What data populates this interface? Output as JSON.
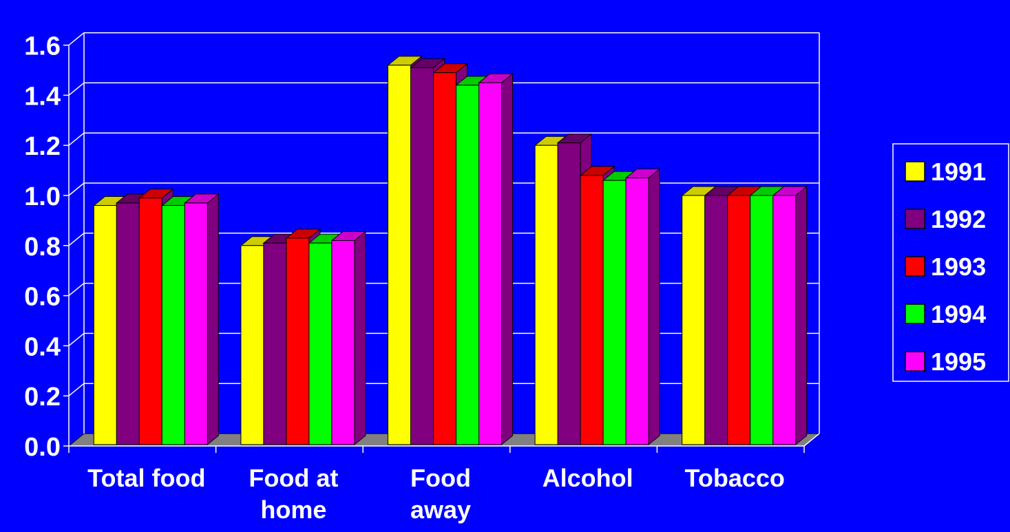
{
  "chart_data": {
    "type": "bar",
    "title": "",
    "xlabel": "",
    "ylabel": "",
    "categories": [
      "Total food",
      "Food at home",
      "Food away",
      "Alcohol",
      "Tobacco"
    ],
    "category_lines": [
      [
        "Total food"
      ],
      [
        "Food at",
        "home"
      ],
      [
        "Food",
        "away"
      ],
      [
        "Alcohol"
      ],
      [
        "Tobacco"
      ]
    ],
    "ylim": [
      0,
      1.6
    ],
    "yticks": [
      "0.0",
      "0.2",
      "0.4",
      "0.6",
      "0.8",
      "1.0",
      "1.2",
      "1.4",
      "1.6"
    ],
    "grid": true,
    "legend_position": "right",
    "series": [
      {
        "name": "1991",
        "color": "#ffff00",
        "values": [
          0.96,
          0.8,
          1.52,
          1.2,
          1.0
        ]
      },
      {
        "name": "1992",
        "color": "#800080",
        "values": [
          0.97,
          0.81,
          1.51,
          1.21,
          1.0
        ]
      },
      {
        "name": "1993",
        "color": "#ff0000",
        "values": [
          0.99,
          0.83,
          1.49,
          1.08,
          1.0
        ]
      },
      {
        "name": "1994",
        "color": "#00ff00",
        "values": [
          0.96,
          0.81,
          1.44,
          1.06,
          1.0
        ]
      },
      {
        "name": "1995",
        "color": "#ff00ff",
        "values": [
          0.97,
          0.82,
          1.45,
          1.07,
          1.0
        ]
      }
    ],
    "colors": {
      "background": "#0000ff",
      "axis": "#ffffff",
      "floor": "#808080",
      "side": "#800080"
    }
  }
}
